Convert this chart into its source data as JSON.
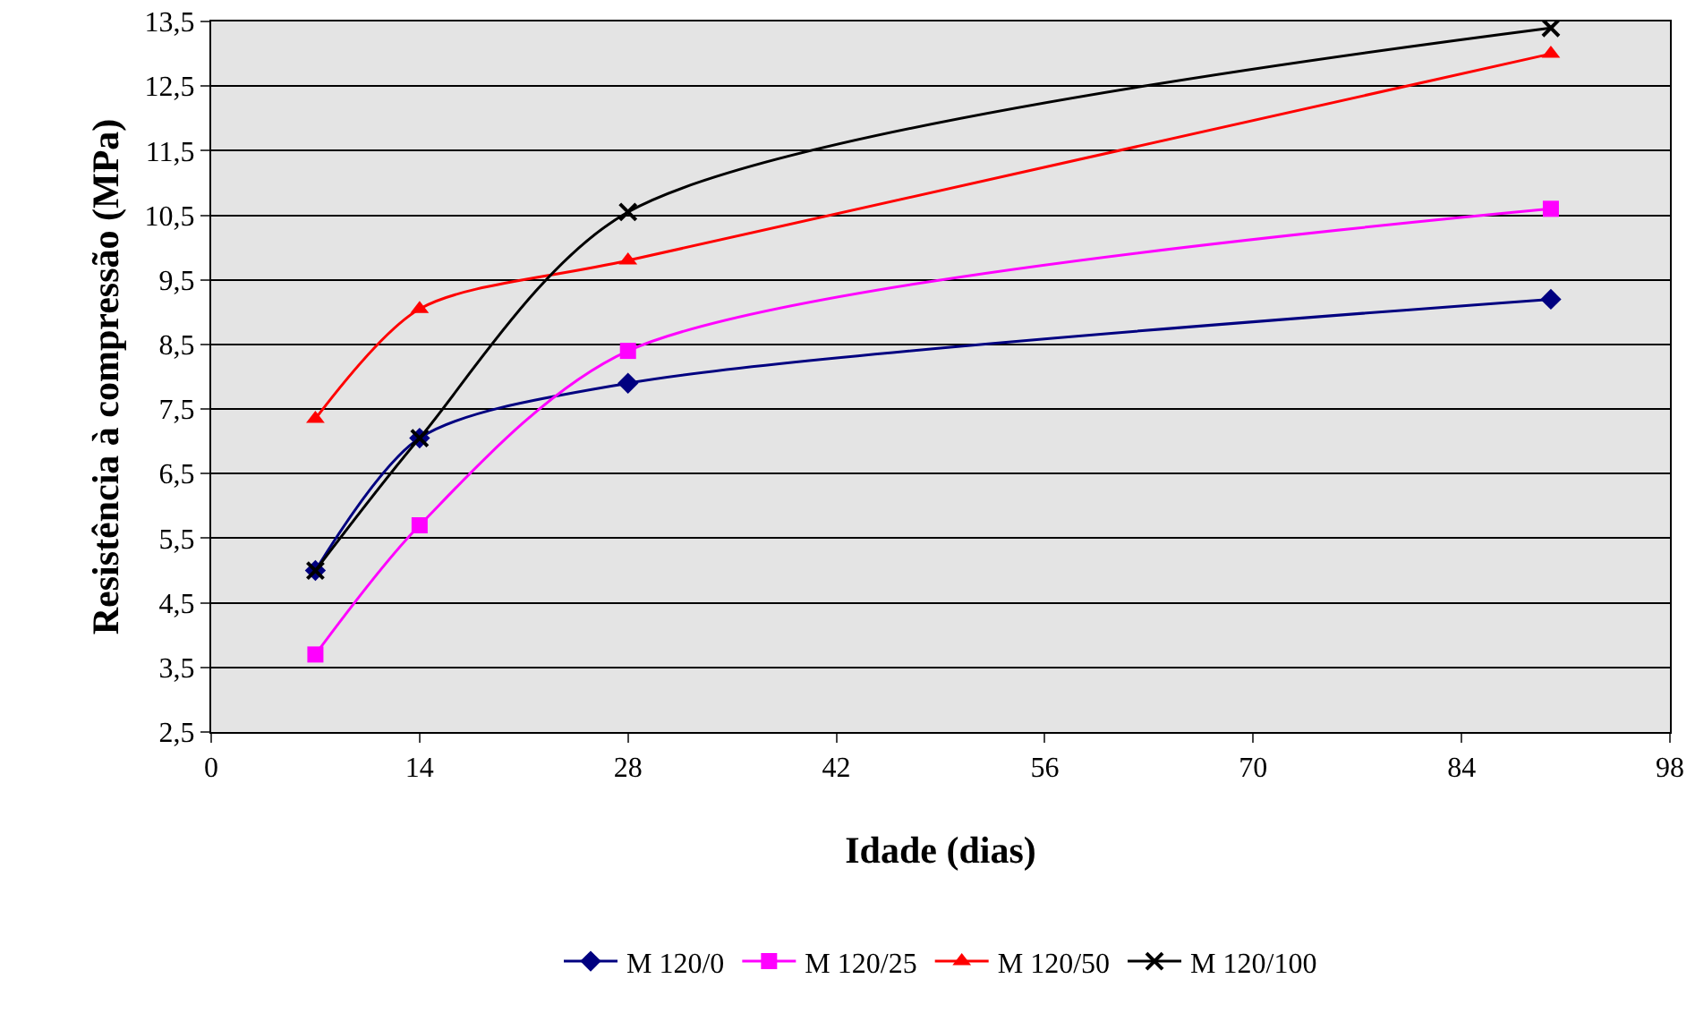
{
  "chart_data": {
    "type": "line",
    "xlabel": "Idade (dias)",
    "ylabel": "Resistência à compressão (MPa)",
    "xlim": [
      0,
      98
    ],
    "xticks": [
      0,
      14,
      28,
      42,
      56,
      70,
      84,
      98
    ],
    "ylim": [
      2.5,
      13.5
    ],
    "yticks": [
      {
        "value": 2.5,
        "label": "2,5"
      },
      {
        "value": 3.5,
        "label": "3,5"
      },
      {
        "value": 4.5,
        "label": "4,5"
      },
      {
        "value": 5.5,
        "label": "5,5"
      },
      {
        "value": 6.5,
        "label": "6,5"
      },
      {
        "value": 7.5,
        "label": "7,5"
      },
      {
        "value": 8.5,
        "label": "8,5"
      },
      {
        "value": 9.5,
        "label": "9,5"
      },
      {
        "value": 10.5,
        "label": "10,5"
      },
      {
        "value": 11.5,
        "label": "11,5"
      },
      {
        "value": 12.5,
        "label": "12,5"
      },
      {
        "value": 13.5,
        "label": "13,5"
      }
    ],
    "x": [
      7,
      14,
      28,
      90
    ],
    "grid": "y",
    "legend": "bottom",
    "line_style": "solid",
    "series": [
      {
        "name": "M 120/0",
        "color": "#000080",
        "marker": "diamond",
        "values": [
          5.0,
          7.05,
          7.9,
          9.2
        ]
      },
      {
        "name": "M 120/25",
        "color": "#ff00ff",
        "marker": "square",
        "values": [
          3.7,
          5.7,
          8.4,
          10.6
        ]
      },
      {
        "name": "M 120/50",
        "color": "#ff0000",
        "marker": "triangle",
        "values": [
          7.35,
          9.05,
          9.8,
          13.0
        ]
      },
      {
        "name": "M 120/100",
        "color": "#000000",
        "marker": "cross",
        "values": [
          5.0,
          7.05,
          10.55,
          13.4
        ]
      }
    ]
  }
}
